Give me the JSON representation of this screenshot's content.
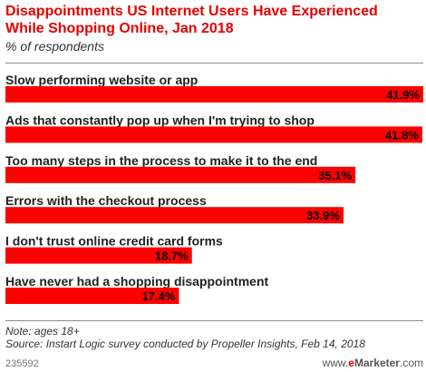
{
  "chart_data": {
    "type": "bar",
    "title": "Disappointments US Internet Users Have Experienced\nWhile Shopping Online, Jan 2018",
    "subtitle": "% of respondents",
    "categories": [
      "Slow performing website or app",
      "Ads that constantly pop up when I'm trying to shop",
      "Too many steps in the process to make it to the end",
      "Errors with the checkout process",
      "I don't trust online credit card forms",
      "Have never had a shopping disappointment"
    ],
    "values": [
      41.9,
      41.8,
      35.1,
      33.9,
      18.7,
      17.4
    ],
    "data_labels": [
      "41.9%",
      "41.8%",
      "35.1%",
      "33.9%",
      "18.7%",
      "17.4%"
    ],
    "xlabel": "",
    "ylabel": "",
    "xlim": [
      0,
      41.9
    ],
    "orientation": "horizontal",
    "grid": false,
    "legend": "none",
    "bar_color": "#ff0000",
    "title_color": "#e60000",
    "text_color": "#222222",
    "label_color": "#000000"
  },
  "notes": {
    "note": "Note: ages 18+",
    "source": "Source: Instart Logic survey conducted by Propeller Insights, Feb 14, 2018"
  },
  "footer": {
    "id": "235592",
    "brand_prefix": "www.",
    "brand_letter": "e",
    "brand_name": "Marketer",
    "brand_suffix": ".com"
  }
}
